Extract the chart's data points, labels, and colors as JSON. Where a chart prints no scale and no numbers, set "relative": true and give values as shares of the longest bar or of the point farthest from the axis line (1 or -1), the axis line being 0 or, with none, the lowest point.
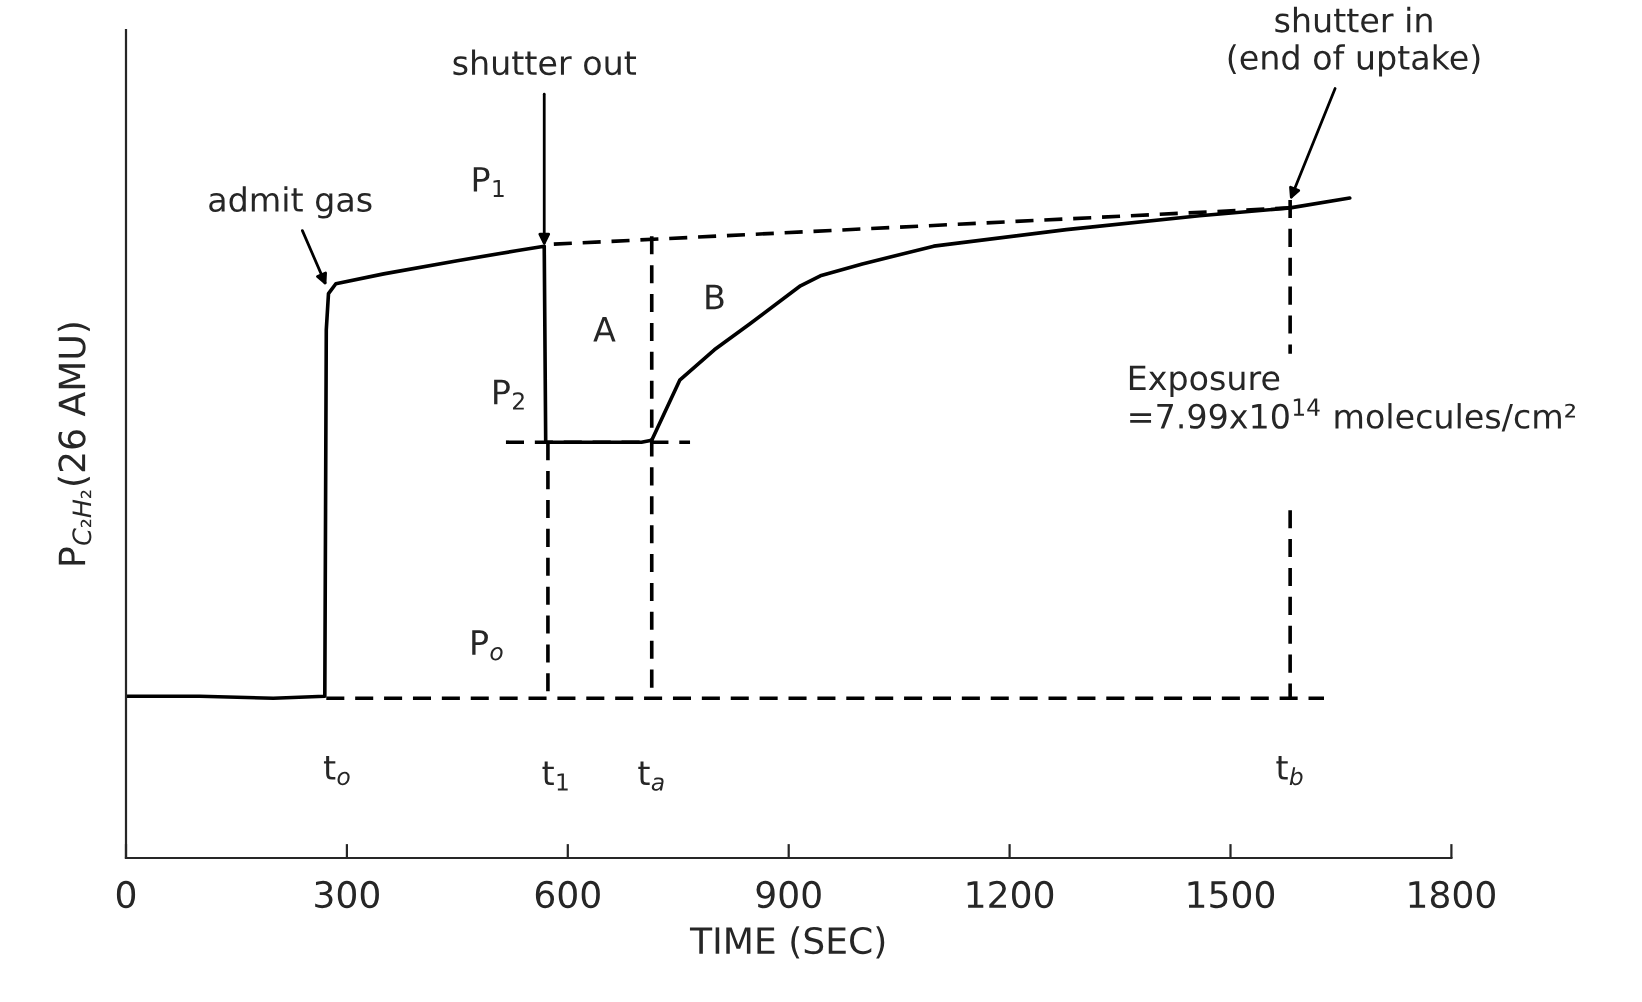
{
  "chart_data": {
    "type": "line",
    "relative": true,
    "xlabel": "TIME (SEC)",
    "ylabel": "P$_{C₂H₂}$(26 AMU)",
    "xlim": [
      0,
      1800
    ],
    "xticks": [
      0,
      300,
      600,
      900,
      1200,
      1500,
      1800
    ],
    "series": [
      {
        "color": "#000000",
        "line_style": "solid",
        "x": [
          0,
          100,
          200,
          270,
          272,
          275,
          285,
          350,
          450,
          530,
          568,
          570,
          600,
          700,
          714,
          752,
          799,
          847,
          916,
          943,
          1000,
          1097,
          1277,
          1458,
          1581,
          1662
        ],
        "values": [
          0.245,
          0.245,
          0.242,
          0.245,
          0.8,
          0.855,
          0.87,
          0.885,
          0.905,
          0.92,
          0.927,
          0.63,
          0.63,
          0.63,
          0.633,
          0.724,
          0.77,
          0.809,
          0.867,
          0.882,
          0.9,
          0.927,
          0.952,
          0.973,
          0.985,
          1.0
        ]
      },
      {
        "color": "#000000",
        "line_style": "dashed",
        "x": [
          272,
          1627
        ],
        "values": [
          0.242,
          0.242
        ]
      },
      {
        "color": "#000000",
        "line_style": "dashed",
        "x": [
          581,
          1581
        ],
        "values": [
          0.93,
          0.985
        ]
      },
      {
        "color": "#000000",
        "line_style": "dashed",
        "x": [
          516,
          766
        ],
        "values": [
          0.63,
          0.63
        ]
      },
      {
        "color": "#000000",
        "line_style": "dashed",
        "x": [
          573,
          573
        ],
        "values": [
          0.63,
          0.242
        ]
      },
      {
        "color": "#000000",
        "line_style": "dashed",
        "x": [
          714,
          714
        ],
        "values": [
          0.942,
          0.242
        ]
      },
      {
        "color": "#000000",
        "line_style": "dashed",
        "x": [
          1581,
          1581
        ],
        "values": [
          0.997,
          0.764
        ]
      },
      {
        "color": "#000000",
        "line_style": "dashed",
        "x": [
          1581,
          1581
        ],
        "values": [
          0.527,
          0.242
        ]
      }
    ],
    "annotations": [
      {
        "text": "admit gas",
        "x": 272,
        "y": 0.867
      },
      {
        "text": "shutter out",
        "x": 568,
        "y": 0.927
      },
      {
        "text": "shutter in\n(end of uptake)",
        "x": 1581,
        "y": 0.997
      },
      {
        "text": "P$_{1}$",
        "x": 568,
        "y": 0.927
      },
      {
        "text": "P$_{2}$",
        "x": 573,
        "y": 0.63
      },
      {
        "text": "P$_{o}$",
        "x": 573,
        "y": 0.242
      },
      "A",
      "B",
      {
        "text": "t$_{o}$",
        "x": 272,
        "y": 0.242
      },
      {
        "text": "t$_{1}$",
        "x": 573,
        "y": 0.242
      },
      {
        "text": "t$_{a}$",
        "x": 714,
        "y": 0.242
      },
      {
        "text": "t$_{b}$",
        "x": 1581,
        "y": 0.242
      },
      "Exposure\n=7.99x10$^{14}$ molecules/cm²"
    ]
  }
}
